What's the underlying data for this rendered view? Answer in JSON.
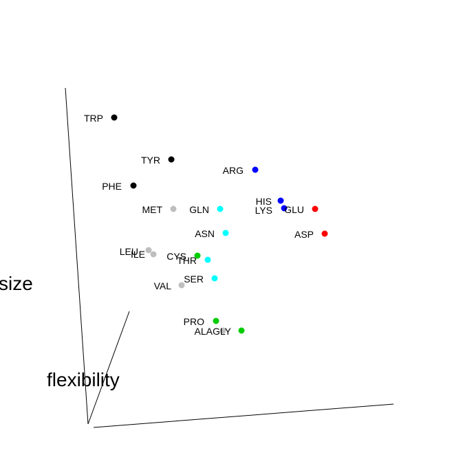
{
  "chart_data": {
    "type": "scatter",
    "title": "",
    "projection": "3d",
    "axis_labels": {
      "size": "size",
      "flexibility": "flexibility",
      "third": ""
    },
    "points": [
      {
        "label": "TRP",
        "color": "#000000"
      },
      {
        "label": "TYR",
        "color": "#000000"
      },
      {
        "label": "PHE",
        "color": "#000000"
      },
      {
        "label": "ARG",
        "color": "#0000FF"
      },
      {
        "label": "HIS",
        "color": "#0000FF"
      },
      {
        "label": "LYS",
        "color": "#0000FF"
      },
      {
        "label": "GLU",
        "color": "#FF0000"
      },
      {
        "label": "ASP",
        "color": "#FF0000"
      },
      {
        "label": "MET",
        "color": "#BEBEBE"
      },
      {
        "label": "GLN",
        "color": "#00FFFF"
      },
      {
        "label": "ASN",
        "color": "#00FFFF"
      },
      {
        "label": "LEU",
        "color": "#BEBEBE"
      },
      {
        "label": "ILE",
        "color": "#BEBEBE"
      },
      {
        "label": "CYS",
        "color": "#00CD00"
      },
      {
        "label": "THR",
        "color": "#00FFFF"
      },
      {
        "label": "SER",
        "color": "#00FFFF"
      },
      {
        "label": "VAL",
        "color": "#BEBEBE"
      },
      {
        "label": "PRO",
        "color": "#00CD00"
      },
      {
        "label": "ALA",
        "color": "#BEBEBE"
      },
      {
        "label": "GLY",
        "color": "#00CD00"
      }
    ]
  }
}
